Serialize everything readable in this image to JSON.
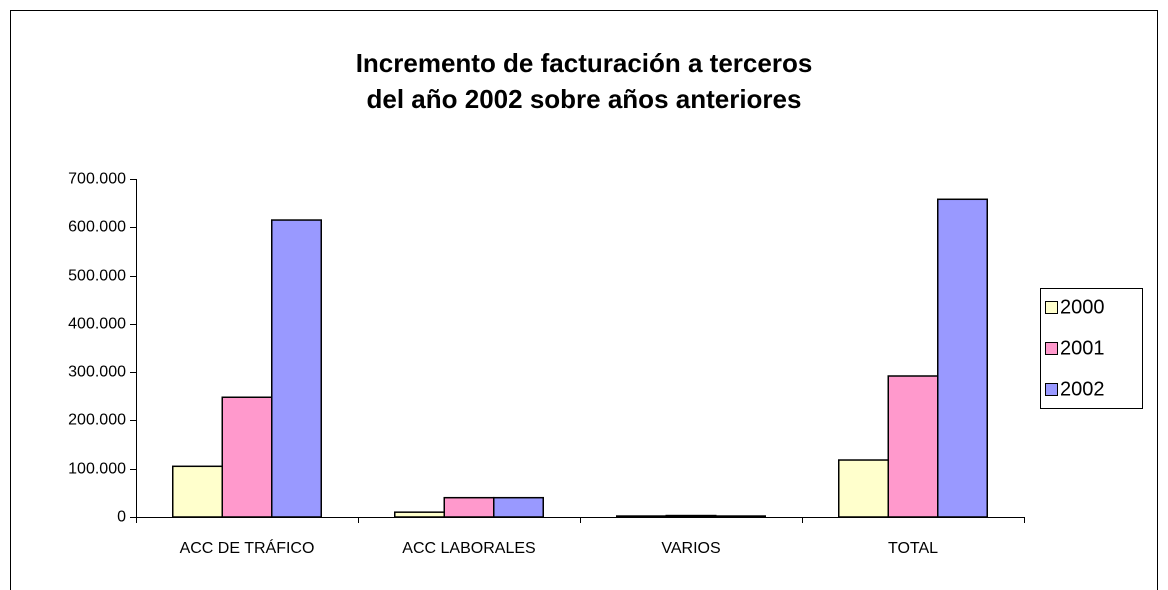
{
  "chart_data": {
    "type": "bar",
    "title": [
      "Incremento de facturación a terceros",
      "del año 2002 sobre años anteriores"
    ],
    "categories": [
      "ACC DE TRÁFICO",
      "ACC LABORALES",
      "VARIOS",
      "TOTAL"
    ],
    "series": [
      {
        "name": "2000",
        "color": "#ffffcc",
        "values": [
          105000,
          10000,
          2000,
          118000
        ]
      },
      {
        "name": "2001",
        "color": "#ff99cc",
        "values": [
          248000,
          40000,
          3000,
          292000
        ]
      },
      {
        "name": "2002",
        "color": "#9999ff",
        "values": [
          615000,
          40000,
          2000,
          658000
        ]
      }
    ],
    "ylim": [
      0,
      700000
    ],
    "yticks": [
      0,
      {
        "value": 100000,
        "label": "100.000"
      },
      {
        "value": 200000,
        "label": "200.000"
      },
      {
        "value": 300000,
        "label": "300.000"
      },
      {
        "value": 400000,
        "label": "400.000"
      },
      {
        "value": 500000,
        "label": "500.000"
      },
      {
        "value": 600000,
        "label": "600.000"
      },
      {
        "value": 700000,
        "label": "700.000"
      }
    ],
    "legend": "right"
  }
}
